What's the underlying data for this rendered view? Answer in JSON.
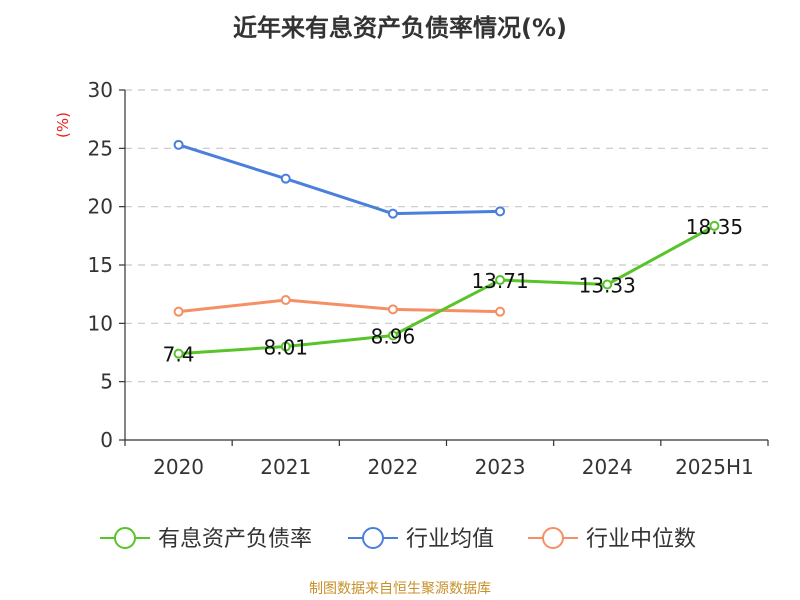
{
  "chart_data": {
    "type": "line",
    "title": "近年来有息资产负债率情况(%)",
    "ylabel": "(%)",
    "categories": [
      "2020",
      "2021",
      "2022",
      "2023",
      "2024",
      "2025H1"
    ],
    "ylim": [
      0,
      30
    ],
    "yticks": [
      0,
      5,
      10,
      15,
      20,
      25,
      30
    ],
    "grid": true,
    "legend_position": "bottom",
    "series": [
      {
        "name": "有息资产负债率",
        "color": "#58c42a",
        "values": [
          7.4,
          8.01,
          8.96,
          13.71,
          13.33,
          18.35
        ],
        "labels": [
          "7.4",
          "8.01",
          "8.96",
          "13.71",
          "13.33",
          "18.35"
        ]
      },
      {
        "name": "行业均值",
        "color": "#4a7fdc",
        "values": [
          25.3,
          22.4,
          19.4,
          19.6,
          null,
          null
        ]
      },
      {
        "name": "行业中位数",
        "color": "#f59064",
        "values": [
          11.0,
          12.0,
          11.2,
          11.0,
          null,
          null
        ]
      }
    ]
  },
  "source": "制图数据来自恒生聚源数据库"
}
